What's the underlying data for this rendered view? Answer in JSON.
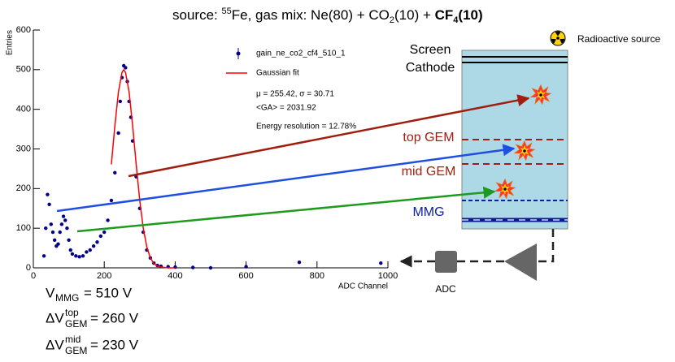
{
  "chart_data": {
    "type": "scatter",
    "title_parts": [
      "source: ",
      "55",
      "Fe, gas mix: Ne(80) + CO",
      "2",
      "(10) + ",
      "CF",
      "4",
      "(10)"
    ],
    "x_label": "ADC Channel",
    "y_label": "Entries",
    "xlim": [
      0,
      1000
    ],
    "ylim": [
      0,
      600
    ],
    "xticks": [
      0,
      200,
      400,
      600,
      800,
      1000
    ],
    "yticks": [
      0,
      100,
      200,
      300,
      400,
      500,
      600
    ],
    "series": [
      {
        "name": "gain_ne_co2_cf4_510_1",
        "color": "#00008b",
        "type": "scatter",
        "x": [
          30,
          35,
          40,
          45,
          50,
          55,
          60,
          65,
          70,
          75,
          80,
          85,
          90,
          95,
          100,
          105,
          110,
          120,
          130,
          140,
          150,
          160,
          170,
          180,
          190,
          200,
          210,
          220,
          230,
          240,
          245,
          250,
          255,
          260,
          265,
          270,
          275,
          280,
          290,
          300,
          310,
          320,
          330,
          340,
          350,
          360,
          380,
          400,
          450,
          500,
          600,
          750,
          980
        ],
        "values": [
          30,
          100,
          185,
          160,
          110,
          90,
          70,
          55,
          60,
          90,
          110,
          130,
          120,
          100,
          70,
          45,
          35,
          30,
          28,
          30,
          40,
          45,
          55,
          65,
          80,
          90,
          120,
          170,
          240,
          340,
          420,
          480,
          510,
          505,
          470,
          420,
          380,
          320,
          230,
          150,
          90,
          45,
          25,
          12,
          6,
          4,
          3,
          2,
          1,
          0,
          3,
          14,
          12
        ]
      },
      {
        "name": "Gaussian fit",
        "color": "#ff0000",
        "type": "line",
        "x": [
          220,
          230,
          240,
          250,
          255,
          260,
          270,
          280,
          290,
          300,
          310,
          320,
          330,
          340,
          350,
          360,
          380,
          400
        ],
        "values": [
          261,
          359,
          444,
          493,
          500,
          493,
          444,
          359,
          261,
          171,
          100,
          53,
          25,
          11,
          4,
          2,
          0,
          0
        ]
      }
    ],
    "annotations": [
      "μ = 255.42,  σ = 30.71",
      "<GA> = 2031.92",
      "Energy resolution = 12.78%"
    ]
  },
  "diagram": {
    "source": "Radioactive source",
    "screen": "Screen",
    "cathode": "Cathode",
    "top_gem": "top GEM",
    "mid_gem": "mid GEM",
    "mmg": "MMG",
    "adc": "ADC"
  },
  "voltages": [
    {
      "symbol": "V",
      "sub": "MMG",
      "value": " = 510 V"
    },
    {
      "symbol": "ΔV",
      "sup": "top",
      "sub": "GEM",
      "value": " = 260 V"
    },
    {
      "symbol": "ΔV",
      "sup": "mid",
      "sub": "GEM",
      "value": " = 230 V"
    }
  ]
}
